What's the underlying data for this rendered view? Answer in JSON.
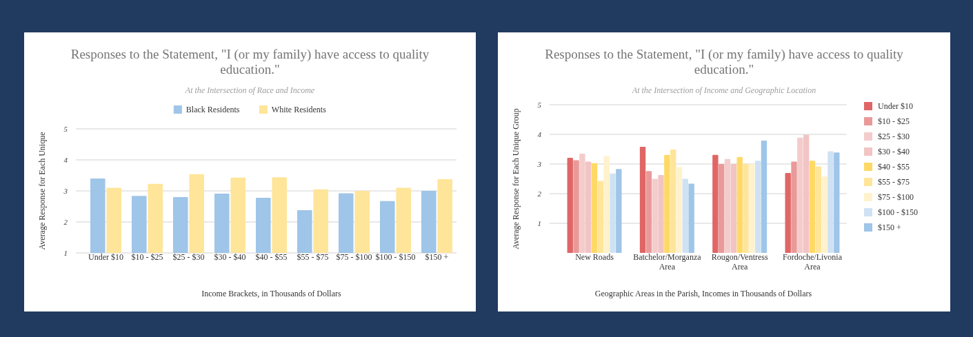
{
  "chart_data": [
    {
      "type": "bar",
      "title": "Responses to the Statement, \"I (or my family) have access to quality education.\"",
      "subtitle": "At the Intersection of Race and Income",
      "xlabel": "Income Brackets, in Thousands of Dollars",
      "ylabel": "Average Response for Each Unique",
      "categories": [
        "Under $10",
        "$10 - $25",
        "$25 - $30",
        "$30 - $40",
        "$40 - $55",
        "$55 - $75",
        "$75 - $100",
        "$100  - $150",
        "$150 +"
      ],
      "series": [
        {
          "name": "Black Residents",
          "color": "#9fc5e8",
          "values": [
            3.4,
            2.84,
            2.8,
            2.91,
            2.78,
            2.38,
            2.92,
            2.67,
            3.0
          ]
        },
        {
          "name": "White Residents",
          "color": "#ffe599",
          "values": [
            3.1,
            3.23,
            3.54,
            3.43,
            3.44,
            3.05,
            3.0,
            3.1,
            3.38
          ]
        }
      ],
      "ylim": [
        1,
        5
      ],
      "yticks": [
        1,
        2,
        3,
        4,
        5
      ],
      "grid": "y",
      "legend": "top"
    },
    {
      "type": "bar",
      "title": "Responses to the Statement, \"I (or my family) have access to quality education.\"",
      "subtitle": "At the Intersection of Income and Geographic Location",
      "xlabel": "Geographic Areas in the Parish, Incomes in Thousands of Dollars",
      "ylabel": "Average Response for Each Unique Group",
      "categories": [
        "New Roads",
        "Batchelor/Morganza Area",
        "Rougon/Ventress Area",
        "Fordoche/Livonia Area"
      ],
      "series": [
        {
          "name": "Under $10",
          "color": "#e06666",
          "values": [
            3.21,
            3.58,
            3.31,
            2.7
          ]
        },
        {
          "name": "$10 - $25",
          "color": "#ea9999",
          "values": [
            3.13,
            2.76,
            3.0,
            3.08
          ]
        },
        {
          "name": "$25 - $30",
          "color": "#f4cccc",
          "values": [
            3.35,
            2.5,
            3.17,
            3.89
          ]
        },
        {
          "name": "$30 - $40",
          "color": "#f2c4c4",
          "values": [
            3.08,
            2.63,
            3.0,
            3.99
          ]
        },
        {
          "name": "$40 - $55",
          "color": "#ffd966",
          "values": [
            3.03,
            3.31,
            3.24,
            3.11
          ]
        },
        {
          "name": "$55 - $75",
          "color": "#ffe599",
          "values": [
            2.43,
            3.49,
            3.0,
            2.92
          ]
        },
        {
          "name": "$75 - $100",
          "color": "#fff2cc",
          "values": [
            3.27,
            2.9,
            3.0,
            2.58
          ]
        },
        {
          "name": "$100  - $150",
          "color": "#cfe2f3",
          "values": [
            2.68,
            2.5,
            3.11,
            3.43
          ]
        },
        {
          "name": "$150 +",
          "color": "#9fc5e8",
          "values": [
            2.83,
            2.34,
            3.79,
            3.39
          ]
        }
      ],
      "ylim": [
        0,
        5
      ],
      "yticks": [
        1,
        2,
        3,
        4,
        5
      ],
      "grid": "y",
      "legend": "right"
    }
  ]
}
